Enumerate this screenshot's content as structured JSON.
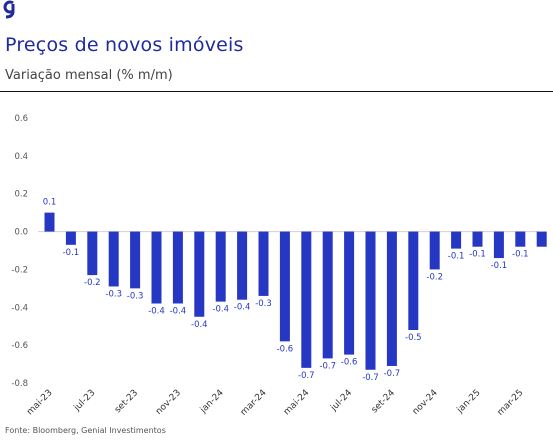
{
  "header": {
    "title": "Preços de novos imóveis",
    "subtitle": "Variação mensal (% m/m)"
  },
  "footer": {
    "source": "Fonte: Bloomberg, Genial Investimentos"
  },
  "colors": {
    "bar": "#2637c4",
    "brand": "#1f2a9b",
    "label": "#2637c4",
    "axis_text": "#555555"
  },
  "icons": {
    "logo": "genial-logo-icon"
  },
  "chart_data": {
    "type": "bar",
    "title": "Preços de novos imóveis",
    "subtitle": "Variação mensal (% m/m)",
    "ylim": [
      -0.8,
      0.6
    ],
    "yticks": [
      "0.6",
      "0.4",
      "0.2",
      "0.0",
      "-0.2",
      "-0.4",
      "-0.6",
      "-0.8"
    ],
    "grid": false,
    "legend": "none",
    "categories": [
      "mai-23",
      "jun-23",
      "jul-23",
      "ago-23",
      "set-23",
      "out-23",
      "nov-23",
      "dez-23",
      "jan-24",
      "fev-24",
      "mar-24",
      "abr-24",
      "mai-24",
      "jun-24",
      "jul-24",
      "ago-24",
      "set-24",
      "out-24",
      "nov-24",
      "dez-24",
      "jan-25",
      "fev-25",
      "mar-25",
      "abr-25"
    ],
    "xtick_labels": [
      "mai-23",
      "",
      "jul-23",
      "",
      "set-23",
      "",
      "nov-23",
      "",
      "jan-24",
      "",
      "mar-24",
      "",
      "mai-24",
      "",
      "jul-24",
      "",
      "set-24",
      "",
      "nov-24",
      "",
      "jan-25",
      "",
      "mar-25",
      ""
    ],
    "values": [
      0.1,
      -0.07,
      -0.23,
      -0.29,
      -0.3,
      -0.38,
      -0.38,
      -0.45,
      -0.37,
      -0.36,
      -0.34,
      -0.58,
      -0.72,
      -0.67,
      -0.65,
      -0.73,
      -0.71,
      -0.52,
      -0.2,
      -0.09,
      -0.08,
      -0.14,
      -0.08,
      -0.08
    ],
    "data_labels": [
      "0.1",
      "-0.1",
      "-0.2",
      "-0.3",
      "-0.3",
      "-0.4",
      "-0.4",
      "-0.4",
      "-0.4",
      "-0.4",
      "-0.3",
      "-0.6",
      "-0.7",
      "-0.7",
      "-0.6",
      "-0.7",
      "-0.7",
      "-0.5",
      "-0.2",
      "-0.1",
      "-0.1",
      "-0.1",
      "-0.1",
      ""
    ]
  }
}
